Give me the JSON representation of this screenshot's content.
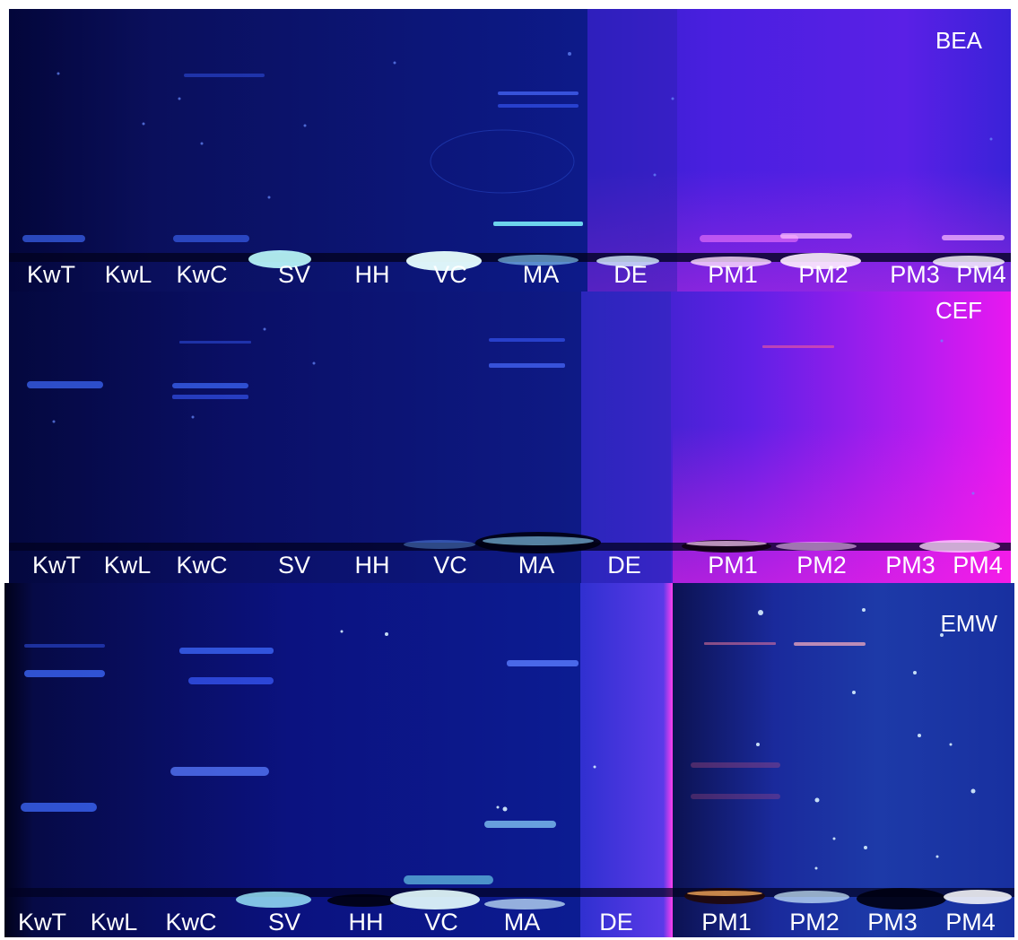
{
  "plates": [
    {
      "title": "BEA",
      "lanes": [
        "KwT",
        "KwL",
        "KwC",
        "SV",
        "HH",
        "VC",
        "MA",
        "DE",
        "PM1",
        "PM2",
        "PM3",
        "PM4"
      ]
    },
    {
      "title": "CEF",
      "lanes": [
        "KwT",
        "KwL",
        "KwC",
        "SV",
        "HH",
        "VC",
        "MA",
        "DE",
        "PM1",
        "PM2",
        "PM3",
        "PM4"
      ]
    },
    {
      "title": "EMW",
      "lanes": [
        "KwT",
        "KwL",
        "KwC",
        "SV",
        "HH",
        "VC",
        "MA",
        "DE",
        "PM1",
        "PM2",
        "PM3",
        "PM4"
      ]
    }
  ],
  "colors": {
    "left_background": "#0a0f6e",
    "right_background": "#3a1fd8",
    "pink_glow": "#ff20e0",
    "band_blue": "#3f6bff",
    "band_cyan": "#7ff5ff",
    "text": "#ffffff"
  }
}
